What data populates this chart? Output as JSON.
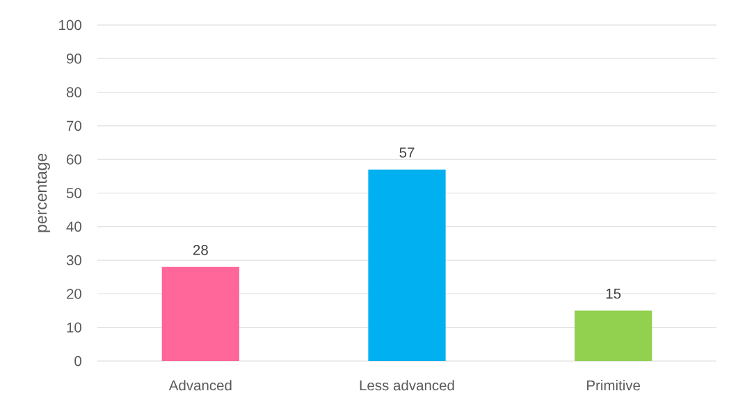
{
  "chart_data": {
    "type": "bar",
    "ylabel": "percentage",
    "categories": [
      "Advanced",
      "Less advanced",
      "Primitive"
    ],
    "values": [
      28,
      57,
      15
    ],
    "colors": [
      "#ff6699",
      "#00b0f0",
      "#92d050"
    ],
    "ylim": [
      0,
      100
    ],
    "yticks": [
      0,
      10,
      20,
      30,
      40,
      50,
      60,
      70,
      80,
      90,
      100
    ],
    "grid": "y",
    "data_labels": true
  }
}
